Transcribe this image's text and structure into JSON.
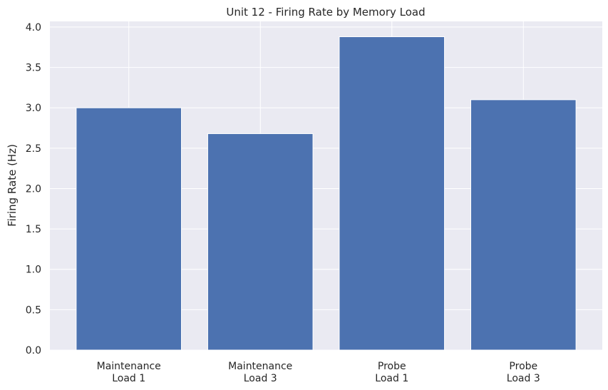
{
  "chart_data": {
    "type": "bar",
    "title": "Unit 12 - Firing Rate by Memory Load",
    "xlabel": "",
    "ylabel": "Firing Rate (Hz)",
    "categories": [
      [
        "Maintenance",
        "Load 1"
      ],
      [
        "Maintenance",
        "Load 3"
      ],
      [
        "Probe",
        "Load 1"
      ],
      [
        "Probe",
        "Load 3"
      ]
    ],
    "values": [
      3.0,
      2.68,
      3.88,
      3.1
    ],
    "ylim": [
      0,
      4.07
    ],
    "yticks": [
      0.0,
      0.5,
      1.0,
      1.5,
      2.0,
      2.5,
      3.0,
      3.5,
      4.0
    ],
    "ytick_labels": [
      "0.0",
      "0.5",
      "1.0",
      "1.5",
      "2.0",
      "2.5",
      "3.0",
      "3.5",
      "4.0"
    ],
    "grid": true,
    "colors": {
      "bar": "#4c72b0",
      "plot_background": "#eaeaf2",
      "grid": "#ffffff"
    }
  }
}
